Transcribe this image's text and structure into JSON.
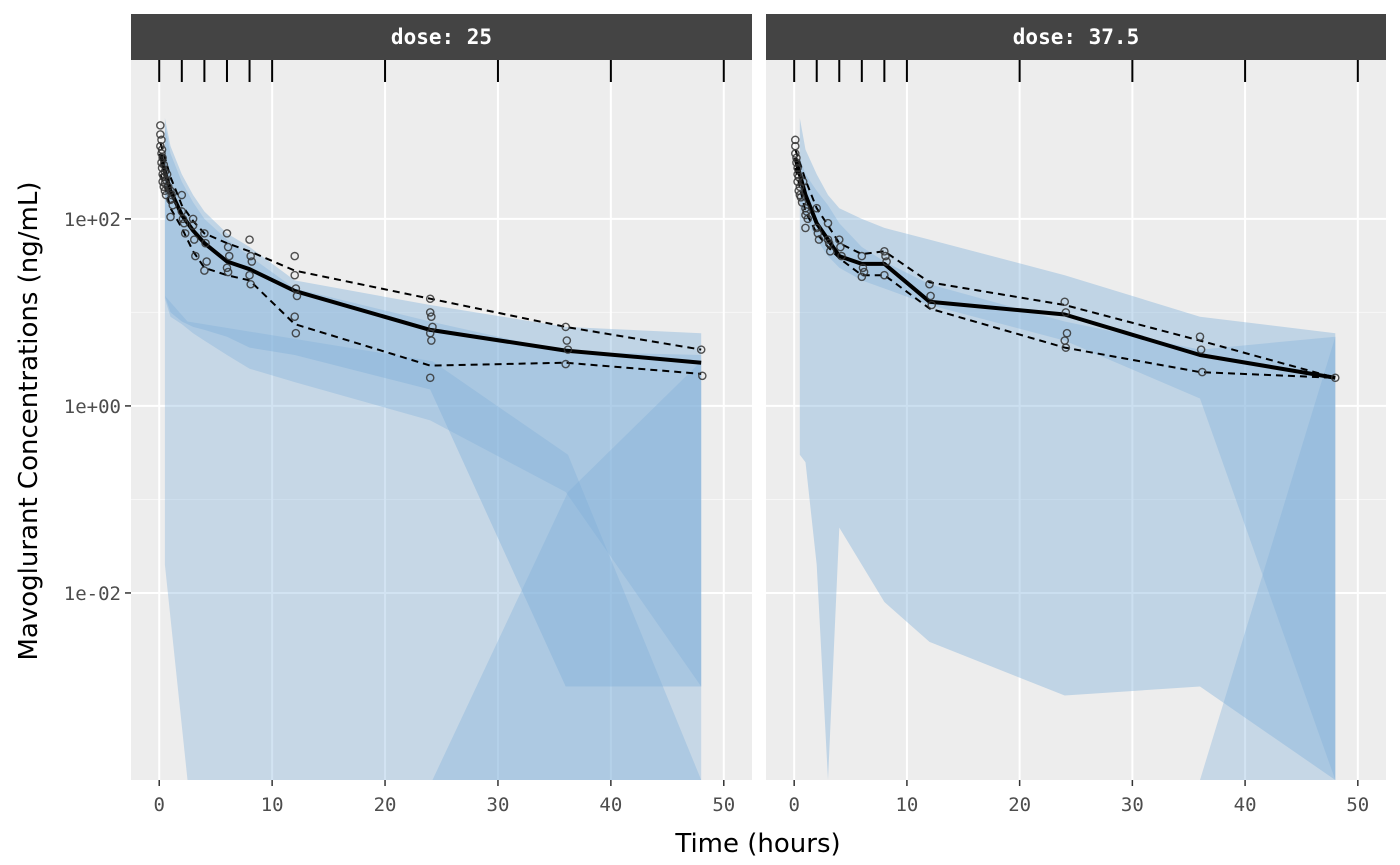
{
  "chart_data": {
    "type": "line",
    "xlabel": "Time (hours)",
    "ylabel": "Mavoglurant Concentrations (ng/mL)",
    "y_scale": "log10",
    "xlim": [
      -2.5,
      52.5
    ],
    "ylim": [
      0.0001,
      5000
    ],
    "x_ticks": [
      0,
      10,
      20,
      30,
      40,
      50
    ],
    "x_tick_labels": [
      "0",
      "10",
      "20",
      "30",
      "40",
      "50"
    ],
    "y_ticks": [
      0.01,
      1,
      100
    ],
    "y_tick_labels": [
      "1e-02",
      "1e+00",
      "1e+02"
    ],
    "rug_ticks": [
      0,
      2,
      4,
      6,
      8,
      10,
      20,
      30,
      40,
      50
    ],
    "grid": true,
    "colors": {
      "panel_bg": "#ededed",
      "strip_bg": "#444444",
      "band_light": "#b8d2e6",
      "band_dark": "#7eb0d9",
      "line": "#000000",
      "point": "#333333"
    },
    "panels": [
      {
        "strip": "dose: 25",
        "bands": [
          {
            "x": [
              0.5,
              1,
              2,
              3,
              4,
              6,
              8,
              12,
              24,
              36,
              48
            ],
            "lo": [
              15,
              10,
              8,
              7,
              6.5,
              5.5,
              4.2,
              3.5,
              1.5,
              0.001,
              0.001
            ],
            "hi": [
              1200,
              600,
              300,
              180,
              120,
              70,
              50,
              22,
              12,
              7,
              6
            ]
          },
          {
            "x": [
              0.5,
              1,
              2,
              3,
              4,
              6,
              8,
              12,
              24,
              36,
              48
            ],
            "lo": [
              14,
              9,
              7.5,
              6,
              5,
              3.5,
              2.5,
              1.8,
              0.7,
              0.12,
              0.001
            ],
            "hi": [
              1000,
              500,
              250,
              150,
              100,
              60,
              40,
              18,
              8,
              3.8,
              3.5
            ]
          },
          {
            "x": [
              0.5,
              2.5,
              24.2,
              36.2,
              48
            ],
            "lo": [
              0.02,
              0.0001,
              0.0001,
              0.0001,
              0.0001
            ],
            "hi": [
              15,
              8,
              3,
              0.3,
              0.0001
            ]
          },
          {
            "x": [
              24.2,
              36.2,
              48
            ],
            "lo": [
              0.0001,
              0.0001,
              0.0001
            ],
            "hi": [
              0.0001,
              0.12,
              3
            ]
          }
        ],
        "lines": [
          {
            "name": "median",
            "style": "solid",
            "x": [
              0.1,
              0.5,
              1,
              2,
              3,
              4,
              6,
              8,
              12,
              24,
              36,
              48
            ],
            "y": [
              500,
              320,
              200,
              110,
              75,
              55,
              35,
              29,
              17,
              6.5,
              3.9,
              2.9
            ]
          },
          {
            "name": "upper",
            "style": "dashed",
            "x": [
              0.1,
              0.5,
              1,
              2,
              3,
              4,
              6,
              8,
              12,
              24,
              36,
              48
            ],
            "y": [
              650,
              450,
              280,
              140,
              95,
              70,
              55,
              45,
              28,
              14,
              7,
              4
            ]
          },
          {
            "name": "lower",
            "style": "dashed",
            "x": [
              0.1,
              0.5,
              1,
              2,
              3,
              4,
              6,
              8,
              12,
              24,
              36,
              48
            ],
            "y": [
              300,
              220,
              130,
              80,
              45,
              30,
              25,
              22,
              7.5,
              2.7,
              2.9,
              2.2
            ]
          }
        ],
        "points": {
          "x": [
            0.1,
            0.1,
            0.1,
            0.2,
            0.2,
            0.2,
            0.25,
            0.25,
            0.3,
            0.3,
            0.3,
            0.4,
            0.4,
            0.4,
            0.5,
            0.5,
            0.5,
            0.6,
            0.6,
            0.7,
            0.8,
            1.0,
            1.0,
            1.0,
            1.1,
            1.2,
            2.0,
            2.0,
            2.1,
            2.2,
            2.3,
            3.0,
            3.0,
            3.1,
            3.2,
            4.0,
            4.1,
            4.2,
            4.0,
            6.0,
            6.1,
            6.2,
            6.0,
            6.1,
            8.0,
            8.1,
            8.2,
            8.0,
            8.1,
            12.0,
            12.0,
            12.1,
            12.2,
            12.0,
            12.1,
            24.0,
            24.0,
            24.1,
            24.2,
            24.0,
            24.1,
            24.0,
            36.0,
            36.1,
            36.2,
            36.0,
            48.0,
            48.1
          ],
          "y": [
            1000,
            800,
            600,
            700,
            500,
            400,
            550,
            350,
            450,
            300,
            250,
            380,
            280,
            220,
            320,
            240,
            200,
            260,
            180,
            300,
            220,
            200,
            160,
            105,
            180,
            140,
            180,
            120,
            100,
            90,
            70,
            100,
            85,
            60,
            40,
            70,
            55,
            35,
            28,
            70,
            50,
            40,
            30,
            27,
            60,
            40,
            35,
            25,
            20,
            40,
            25,
            18,
            15,
            9,
            6,
            14,
            10,
            9,
            7,
            6,
            5,
            2,
            7,
            5,
            4,
            2.8,
            4,
            2.1
          ]
        }
      },
      {
        "strip": "dose: 37.5",
        "bands": [
          {
            "x": [
              0.5,
              1,
              2,
              3,
              4,
              6,
              8,
              12,
              24,
              36,
              48
            ],
            "lo": [
              0.3,
              0.25,
              0.02,
              0.0001,
              0.05,
              0.02,
              0.008,
              0.003,
              0.0008,
              0.001,
              0.0001
            ],
            "hi": [
              1200,
              550,
              300,
              180,
              130,
              100,
              80,
              60,
              25,
              9,
              6
            ]
          },
          {
            "x": [
              0.5,
              1,
              2,
              3,
              4,
              6,
              8,
              12,
              24,
              36,
              48
            ],
            "lo": [
              150,
              100,
              60,
              40,
              30,
              22,
              18,
              12,
              5,
              1.2,
              0.0001
            ],
            "hi": [
              450,
              300,
              200,
              140,
              90,
              50,
              35,
              20,
              8,
              4,
              5.5
            ]
          },
          {
            "x": [
              0.5,
              1,
              2,
              3,
              4,
              6,
              8,
              12,
              24,
              36,
              48
            ],
            "lo": [
              0.0001,
              0.0001,
              0.0001,
              0.0001,
              0.0001,
              0.0001,
              0.0001,
              0.0001,
              0.0001,
              0.0001,
              0.0001
            ],
            "hi": [
              0.0001,
              0.0001,
              0.0001,
              0.0001,
              0.0001,
              0.0001,
              0.0001,
              0.0001,
              0.0001,
              0.0001,
              5.5
            ]
          }
        ],
        "lines": [
          {
            "name": "median",
            "style": "solid",
            "x": [
              0.1,
              0.5,
              1,
              2,
              3,
              4,
              6,
              8,
              12,
              24,
              36,
              48
            ],
            "y": [
              450,
              300,
              180,
              90,
              60,
              40,
              33,
              33,
              13,
              9.5,
              3.5,
              2
            ]
          },
          {
            "name": "upper",
            "style": "dashed",
            "x": [
              0.1,
              0.5,
              1,
              2,
              3,
              4,
              6,
              8,
              12,
              24,
              36,
              48
            ],
            "y": [
              550,
              400,
              260,
              130,
              85,
              55,
              42,
              45,
              21,
              12,
              5,
              2
            ]
          },
          {
            "name": "lower",
            "style": "dashed",
            "x": [
              0.1,
              0.5,
              1,
              2,
              3,
              4,
              6,
              8,
              12,
              24,
              36,
              48
            ],
            "y": [
              350,
              220,
              120,
              70,
              50,
              38,
              25,
              25,
              11,
              4.2,
              2.3,
              2
            ]
          }
        ],
        "points": {
          "x": [
            0.1,
            0.1,
            0.1,
            0.2,
            0.2,
            0.3,
            0.3,
            0.3,
            0.4,
            0.4,
            0.5,
            0.5,
            0.6,
            0.7,
            0.8,
            1.0,
            1.0,
            1.0,
            1.1,
            1.2,
            2.0,
            2.0,
            2.1,
            2.2,
            3.0,
            3.0,
            3.1,
            3.2,
            4.0,
            4.1,
            4.2,
            6.0,
            6.1,
            6.2,
            6.0,
            8.0,
            8.1,
            8.2,
            8.0,
            12.0,
            12.1,
            12.2,
            24.0,
            24.1,
            24.2,
            24.0,
            24.1,
            36.0,
            36.1,
            36.2,
            48.0
          ],
          "y": [
            700,
            600,
            500,
            450,
            400,
            350,
            300,
            250,
            280,
            200,
            220,
            180,
            170,
            150,
            250,
            130,
            110,
            80,
            120,
            100,
            130,
            80,
            70,
            60,
            90,
            60,
            55,
            45,
            60,
            50,
            40,
            40,
            30,
            27,
            24,
            45,
            40,
            35,
            25,
            20,
            15,
            12,
            13,
            10,
            6,
            5,
            4.2,
            5.5,
            4,
            2.3,
            2
          ]
        }
      }
    ]
  }
}
